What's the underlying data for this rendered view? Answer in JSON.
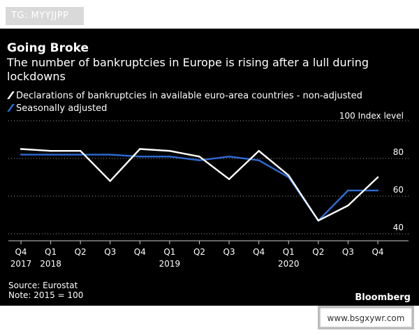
{
  "tag": "TG: MYYJJPP",
  "watermark": "www.bsgxywr.com",
  "title": "Going Broke",
  "subtitle": "The number of bankruptcies in Europe is rising after a lull during lockdowns",
  "legend": [
    {
      "label": "Declarations of bankruptcies in available euro-area countries - non-adjusted",
      "color": "#ffffff"
    },
    {
      "label": "Seasonally adjusted",
      "color": "#2f6bd6"
    }
  ],
  "unit_label": "100 Index level",
  "source": "Source: Eurostat",
  "note": "Note: 2015 = 100",
  "brand": "Bloomberg",
  "chart_data": {
    "type": "line",
    "categories": [
      "Q4 2017",
      "Q1 2018",
      "Q2",
      "Q3",
      "Q4",
      "Q1 2019",
      "Q2",
      "Q3",
      "Q4",
      "Q1 2020",
      "Q2",
      "Q3",
      "Q4"
    ],
    "x_quarter_labels": [
      "Q4",
      "Q1",
      "Q2",
      "Q3",
      "Q4",
      "Q1",
      "Q2",
      "Q3",
      "Q4",
      "Q1",
      "Q2",
      "Q3",
      "Q4"
    ],
    "x_year_labels": [
      {
        "index": 0,
        "label": "2017"
      },
      {
        "index": 1,
        "label": "2018"
      },
      {
        "index": 5,
        "label": "2019"
      },
      {
        "index": 9,
        "label": "2020"
      }
    ],
    "y_ticks": [
      40,
      60,
      80,
      100
    ],
    "ylim": [
      40,
      100
    ],
    "series": [
      {
        "name": "Declarations of bankruptcies in available euro-area countries - non-adjusted",
        "color": "#ffffff",
        "values": [
          85,
          84,
          84,
          68,
          85,
          84,
          81,
          69,
          84,
          71,
          47,
          55,
          70
        ]
      },
      {
        "name": "Seasonally adjusted",
        "color": "#2f6bd6",
        "values": [
          82,
          82,
          82,
          82,
          81,
          81,
          79,
          81,
          79,
          70,
          47,
          63,
          63
        ]
      }
    ]
  }
}
